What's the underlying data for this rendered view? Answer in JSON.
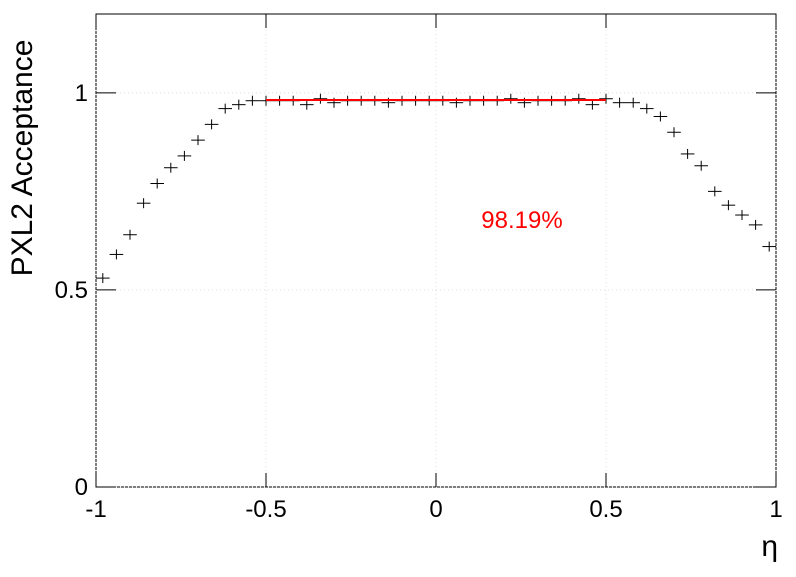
{
  "chart_data": {
    "type": "scatter",
    "y_label": "PXL2 Acceptance",
    "x_label": "η",
    "x": [
      -0.98,
      -0.94,
      -0.9,
      -0.86,
      -0.82,
      -0.78,
      -0.74,
      -0.7,
      -0.66,
      -0.62,
      -0.58,
      -0.54,
      -0.5,
      -0.46,
      -0.42,
      -0.38,
      -0.34,
      -0.3,
      -0.26,
      -0.22,
      -0.18,
      -0.14,
      -0.1,
      -0.06,
      -0.02,
      0.02,
      0.06,
      0.1,
      0.14,
      0.18,
      0.22,
      0.26,
      0.3,
      0.34,
      0.38,
      0.42,
      0.46,
      0.5,
      0.54,
      0.58,
      0.62,
      0.66,
      0.7,
      0.74,
      0.78,
      0.82,
      0.86,
      0.9,
      0.94,
      0.98
    ],
    "xerr": 0.02,
    "values": [
      0.53,
      0.59,
      0.64,
      0.72,
      0.77,
      0.81,
      0.84,
      0.88,
      0.92,
      0.96,
      0.97,
      0.98,
      0.98,
      0.98,
      0.98,
      0.97,
      0.985,
      0.975,
      0.98,
      0.98,
      0.98,
      0.975,
      0.98,
      0.98,
      0.98,
      0.98,
      0.975,
      0.98,
      0.98,
      0.98,
      0.985,
      0.975,
      0.98,
      0.98,
      0.98,
      0.985,
      0.97,
      0.985,
      0.975,
      0.975,
      0.96,
      0.94,
      0.9,
      0.845,
      0.815,
      0.75,
      0.715,
      0.69,
      0.665,
      0.61
    ],
    "color": "#000000",
    "fit": {
      "x": [
        -0.5,
        0.5
      ],
      "values": [
        0.9819,
        0.9819
      ],
      "color": "#ff0000"
    },
    "annotation": "98.19%",
    "annotation_color": "#ff0000",
    "xlim": [
      -1,
      1
    ],
    "ylim": [
      0,
      1.2
    ],
    "xticks": [
      {
        "value": -1,
        "label": "-1"
      },
      -0.5,
      0,
      0.5,
      1
    ],
    "yticks": [
      0,
      0.5,
      1
    ],
    "grid": true
  }
}
